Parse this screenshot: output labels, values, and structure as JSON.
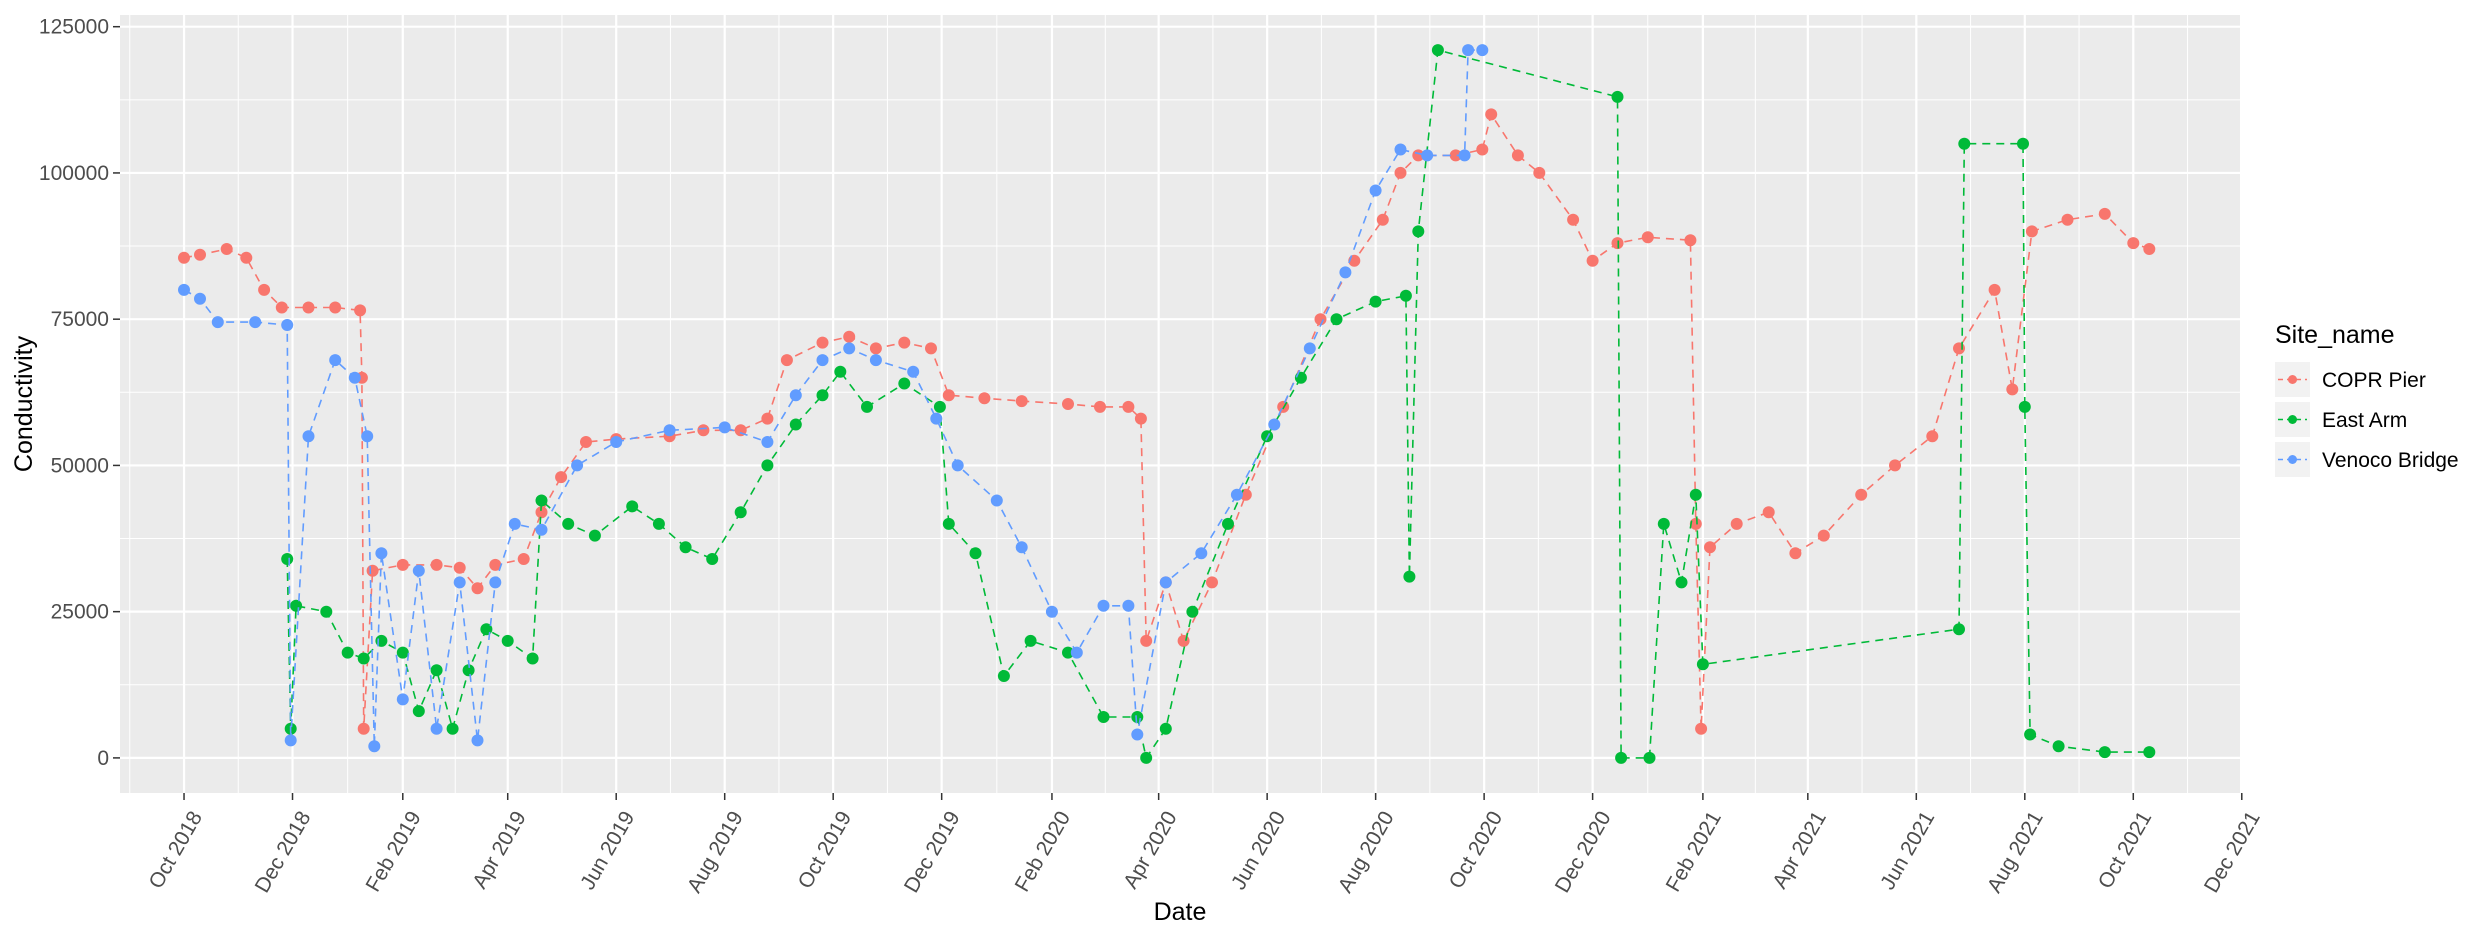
{
  "chart_data": {
    "type": "line",
    "title": "",
    "xlabel": "Date",
    "ylabel": "Conductivity",
    "xlim": [
      "2018-08-26",
      "2021-11-30"
    ],
    "ylim": [
      -6000,
      127000
    ],
    "grid": true,
    "x_ticks": [
      {
        "date": "2018-10-01",
        "label": "Oct 2018"
      },
      {
        "date": "2018-12-01",
        "label": "Dec 2018"
      },
      {
        "date": "2019-02-01",
        "label": "Feb 2019"
      },
      {
        "date": "2019-04-01",
        "label": "Apr 2019"
      },
      {
        "date": "2019-06-01",
        "label": "Jun 2019"
      },
      {
        "date": "2019-08-01",
        "label": "Aug 2019"
      },
      {
        "date": "2019-10-01",
        "label": "Oct 2019"
      },
      {
        "date": "2019-12-01",
        "label": "Dec 2019"
      },
      {
        "date": "2020-02-01",
        "label": "Feb 2020"
      },
      {
        "date": "2020-04-01",
        "label": "Apr 2020"
      },
      {
        "date": "2020-06-01",
        "label": "Jun 2020"
      },
      {
        "date": "2020-08-01",
        "label": "Aug 2020"
      },
      {
        "date": "2020-10-01",
        "label": "Oct 2020"
      },
      {
        "date": "2020-12-01",
        "label": "Dec 2020"
      },
      {
        "date": "2021-02-01",
        "label": "Feb 2021"
      },
      {
        "date": "2021-04-01",
        "label": "Apr 2021"
      },
      {
        "date": "2021-06-01",
        "label": "Jun 2021"
      },
      {
        "date": "2021-08-01",
        "label": "Aug 2021"
      },
      {
        "date": "2021-10-01",
        "label": "Oct 2021"
      },
      {
        "date": "2021-12-01",
        "label": "Dec 2021"
      }
    ],
    "y_ticks": [
      {
        "value": 0,
        "label": "0"
      },
      {
        "value": 25000,
        "label": "25000"
      },
      {
        "value": 50000,
        "label": "50000"
      },
      {
        "value": 75000,
        "label": "75000"
      },
      {
        "value": 100000,
        "label": "100000"
      },
      {
        "value": 125000,
        "label": "125000"
      }
    ],
    "legend": {
      "title": "Site_name",
      "position": "right"
    },
    "series": [
      {
        "name": "COPR Pier",
        "color": "#F8766D",
        "points": [
          [
            "2018-10-01",
            85500
          ],
          [
            "2018-10-10",
            86000
          ],
          [
            "2018-10-25",
            87000
          ],
          [
            "2018-11-05",
            85500
          ],
          [
            "2018-11-15",
            80000
          ],
          [
            "2018-11-25",
            77000
          ],
          [
            "2018-12-10",
            77000
          ],
          [
            "2018-12-25",
            77000
          ],
          [
            "2019-01-08",
            76500
          ],
          [
            "2019-01-09",
            65000
          ],
          [
            "2019-01-10",
            5000
          ],
          [
            "2019-01-15",
            32000
          ],
          [
            "2019-02-01",
            33000
          ],
          [
            "2019-02-20",
            33000
          ],
          [
            "2019-03-05",
            32500
          ],
          [
            "2019-03-15",
            29000
          ],
          [
            "2019-03-25",
            33000
          ],
          [
            "2019-04-10",
            34000
          ],
          [
            "2019-04-20",
            42000
          ],
          [
            "2019-05-01",
            48000
          ],
          [
            "2019-05-15",
            54000
          ],
          [
            "2019-06-01",
            54500
          ],
          [
            "2019-07-01",
            55000
          ],
          [
            "2019-07-20",
            56000
          ],
          [
            "2019-08-10",
            56000
          ],
          [
            "2019-08-25",
            58000
          ],
          [
            "2019-09-05",
            68000
          ],
          [
            "2019-09-25",
            71000
          ],
          [
            "2019-10-10",
            72000
          ],
          [
            "2019-10-25",
            70000
          ],
          [
            "2019-11-10",
            71000
          ],
          [
            "2019-11-25",
            70000
          ],
          [
            "2019-12-05",
            62000
          ],
          [
            "2019-12-25",
            61500
          ],
          [
            "2020-01-15",
            61000
          ],
          [
            "2020-02-10",
            60500
          ],
          [
            "2020-02-28",
            60000
          ],
          [
            "2020-03-15",
            60000
          ],
          [
            "2020-03-22",
            58000
          ],
          [
            "2020-03-25",
            20000
          ],
          [
            "2020-04-05",
            30000
          ],
          [
            "2020-04-15",
            20000
          ],
          [
            "2020-05-01",
            30000
          ],
          [
            "2020-05-20",
            45000
          ],
          [
            "2020-06-10",
            60000
          ],
          [
            "2020-07-01",
            75000
          ],
          [
            "2020-07-20",
            85000
          ],
          [
            "2020-08-05",
            92000
          ],
          [
            "2020-08-15",
            100000
          ],
          [
            "2020-08-25",
            103000
          ],
          [
            "2020-09-15",
            103000
          ],
          [
            "2020-09-30",
            104000
          ],
          [
            "2020-10-05",
            110000
          ],
          [
            "2020-10-20",
            103000
          ],
          [
            "2020-11-01",
            100000
          ],
          [
            "2020-11-20",
            92000
          ],
          [
            "2020-12-01",
            85000
          ],
          [
            "2020-12-15",
            88000
          ],
          [
            "2021-01-01",
            89000
          ],
          [
            "2021-01-25",
            88500
          ],
          [
            "2021-01-28",
            40000
          ],
          [
            "2021-01-31",
            5000
          ],
          [
            "2021-02-05",
            36000
          ],
          [
            "2021-02-20",
            40000
          ],
          [
            "2021-03-10",
            42000
          ],
          [
            "2021-03-25",
            35000
          ],
          [
            "2021-04-10",
            38000
          ],
          [
            "2021-05-01",
            45000
          ],
          [
            "2021-05-20",
            50000
          ],
          [
            "2021-06-10",
            55000
          ],
          [
            "2021-06-25",
            70000
          ],
          [
            "2021-07-15",
            80000
          ],
          [
            "2021-07-25",
            63000
          ],
          [
            "2021-08-05",
            90000
          ],
          [
            "2021-08-25",
            92000
          ],
          [
            "2021-09-15",
            93000
          ],
          [
            "2021-10-01",
            88000
          ],
          [
            "2021-10-10",
            87000
          ]
        ]
      },
      {
        "name": "East Arm",
        "color": "#00BA38",
        "points": [
          [
            "2018-11-28",
            34000
          ],
          [
            "2018-11-30",
            5000
          ],
          [
            "2018-12-03",
            26000
          ],
          [
            "2018-12-20",
            25000
          ],
          [
            "2019-01-01",
            18000
          ],
          [
            "2019-01-10",
            17000
          ],
          [
            "2019-01-20",
            20000
          ],
          [
            "2019-02-01",
            18000
          ],
          [
            "2019-02-10",
            8000
          ],
          [
            "2019-02-20",
            15000
          ],
          [
            "2019-03-01",
            5000
          ],
          [
            "2019-03-10",
            15000
          ],
          [
            "2019-03-20",
            22000
          ],
          [
            "2019-04-01",
            20000
          ],
          [
            "2019-04-15",
            17000
          ],
          [
            "2019-04-20",
            44000
          ],
          [
            "2019-05-05",
            40000
          ],
          [
            "2019-05-20",
            38000
          ],
          [
            "2019-06-10",
            43000
          ],
          [
            "2019-06-25",
            40000
          ],
          [
            "2019-07-10",
            36000
          ],
          [
            "2019-07-25",
            34000
          ],
          [
            "2019-08-10",
            42000
          ],
          [
            "2019-08-25",
            50000
          ],
          [
            "2019-09-10",
            57000
          ],
          [
            "2019-09-25",
            62000
          ],
          [
            "2019-10-05",
            66000
          ],
          [
            "2019-10-20",
            60000
          ],
          [
            "2019-11-10",
            64000
          ],
          [
            "2019-11-30",
            60000
          ],
          [
            "2019-12-05",
            40000
          ],
          [
            "2019-12-20",
            35000
          ],
          [
            "2020-01-05",
            14000
          ],
          [
            "2020-01-20",
            20000
          ],
          [
            "2020-02-10",
            18000
          ],
          [
            "2020-03-01",
            7000
          ],
          [
            "2020-03-20",
            7000
          ],
          [
            "2020-03-25",
            0
          ],
          [
            "2020-04-05",
            5000
          ],
          [
            "2020-04-20",
            25000
          ],
          [
            "2020-05-10",
            40000
          ],
          [
            "2020-06-01",
            55000
          ],
          [
            "2020-06-20",
            65000
          ],
          [
            "2020-07-10",
            75000
          ],
          [
            "2020-08-01",
            78000
          ],
          [
            "2020-08-18",
            79000
          ],
          [
            "2020-08-20",
            31000
          ],
          [
            "2020-08-25",
            90000
          ],
          [
            "2020-09-05",
            121000
          ],
          [
            "2020-12-15",
            113000
          ],
          [
            "2020-12-17",
            0
          ],
          [
            "2021-01-02",
            0
          ],
          [
            "2021-01-10",
            40000
          ],
          [
            "2021-01-20",
            30000
          ],
          [
            "2021-01-28",
            45000
          ],
          [
            "2021-02-01",
            16000
          ],
          [
            "2021-06-25",
            22000
          ],
          [
            "2021-06-28",
            105000
          ],
          [
            "2021-07-31",
            105000
          ],
          [
            "2021-08-01",
            60000
          ],
          [
            "2021-08-04",
            4000
          ],
          [
            "2021-08-20",
            2000
          ],
          [
            "2021-09-15",
            1000
          ],
          [
            "2021-10-10",
            1000
          ]
        ]
      },
      {
        "name": "Venoco Bridge",
        "color": "#619CFF",
        "points": [
          [
            "2018-10-01",
            80000
          ],
          [
            "2018-10-10",
            78500
          ],
          [
            "2018-10-20",
            74500
          ],
          [
            "2018-11-10",
            74500
          ],
          [
            "2018-11-28",
            74000
          ],
          [
            "2018-11-30",
            3000
          ],
          [
            "2018-12-10",
            55000
          ],
          [
            "2018-12-25",
            68000
          ],
          [
            "2019-01-05",
            65000
          ],
          [
            "2019-01-12",
            55000
          ],
          [
            "2019-01-16",
            2000
          ],
          [
            "2019-01-20",
            35000
          ],
          [
            "2019-02-01",
            10000
          ],
          [
            "2019-02-10",
            32000
          ],
          [
            "2019-02-20",
            5000
          ],
          [
            "2019-03-05",
            30000
          ],
          [
            "2019-03-15",
            3000
          ],
          [
            "2019-03-25",
            30000
          ],
          [
            "2019-04-05",
            40000
          ],
          [
            "2019-04-20",
            39000
          ],
          [
            "2019-05-10",
            50000
          ],
          [
            "2019-06-01",
            54000
          ],
          [
            "2019-07-01",
            56000
          ],
          [
            "2019-08-01",
            56500
          ],
          [
            "2019-08-25",
            54000
          ],
          [
            "2019-09-10",
            62000
          ],
          [
            "2019-09-25",
            68000
          ],
          [
            "2019-10-10",
            70000
          ],
          [
            "2019-10-25",
            68000
          ],
          [
            "2019-11-15",
            66000
          ],
          [
            "2019-11-28",
            58000
          ],
          [
            "2019-12-10",
            50000
          ],
          [
            "2020-01-01",
            44000
          ],
          [
            "2020-01-15",
            36000
          ],
          [
            "2020-02-01",
            25000
          ],
          [
            "2020-02-15",
            18000
          ],
          [
            "2020-03-01",
            26000
          ],
          [
            "2020-03-15",
            26000
          ],
          [
            "2020-03-20",
            4000
          ],
          [
            "2020-04-05",
            30000
          ],
          [
            "2020-04-25",
            35000
          ],
          [
            "2020-05-15",
            45000
          ],
          [
            "2020-06-05",
            57000
          ],
          [
            "2020-06-25",
            70000
          ],
          [
            "2020-07-15",
            83000
          ],
          [
            "2020-08-01",
            97000
          ],
          [
            "2020-08-15",
            104000
          ],
          [
            "2020-08-30",
            103000
          ],
          [
            "2020-09-20",
            103000
          ],
          [
            "2020-09-22",
            121000
          ],
          [
            "2020-09-30",
            121000
          ]
        ]
      }
    ]
  }
}
